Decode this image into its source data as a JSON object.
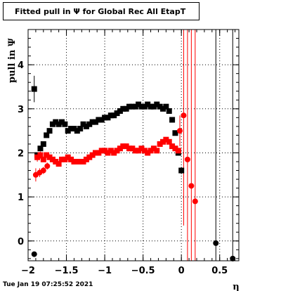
{
  "title": "Fitted pull in  Ψ  for Global Rec All EtapT",
  "timestamp": "Tue Jan 19 07:25:52 2021",
  "chart_data": {
    "type": "scatter",
    "title": "Fitted pull in  Ψ  for Global Rec All EtapT",
    "xlabel": "η",
    "ylabel": "pull in  Ψ",
    "xlim": [
      -2.0,
      0.75
    ],
    "ylim": [
      -0.45,
      4.8
    ],
    "grid": true,
    "xticks": [
      -2,
      -1.5,
      -1,
      -0.5,
      0,
      0.5
    ],
    "xtick_labels": [
      "−2",
      "−1.5",
      "−1",
      "−0.5",
      "0",
      "0.5"
    ],
    "yticks": [
      0,
      1,
      2,
      3,
      4
    ],
    "ytick_labels": [
      "0",
      "1",
      "2",
      "3",
      "4"
    ],
    "series": [
      {
        "color": "#000000",
        "marker": "square",
        "x": [
          -1.92,
          -1.88,
          -1.84,
          -1.8,
          -1.76,
          -1.72,
          -1.68,
          -1.64,
          -1.6,
          -1.56,
          -1.52,
          -1.48,
          -1.44,
          -1.4,
          -1.36,
          -1.32,
          -1.28,
          -1.24,
          -1.2,
          -1.16,
          -1.12,
          -1.08,
          -1.04,
          -1.0,
          -0.96,
          -0.92,
          -0.88,
          -0.84,
          -0.8,
          -0.76,
          -0.72,
          -0.68,
          -0.64,
          -0.6,
          -0.56,
          -0.52,
          -0.48,
          -0.44,
          -0.4,
          -0.36,
          -0.32,
          -0.28,
          -0.24,
          -0.2,
          -0.16,
          -0.12,
          -0.08,
          -0.04,
          0.0
        ],
        "y": [
          3.45,
          1.95,
          2.1,
          2.2,
          2.4,
          2.5,
          2.65,
          2.7,
          2.65,
          2.7,
          2.65,
          2.5,
          2.55,
          2.55,
          2.5,
          2.55,
          2.65,
          2.6,
          2.65,
          2.7,
          2.7,
          2.75,
          2.75,
          2.8,
          2.8,
          2.85,
          2.85,
          2.9,
          2.95,
          3.0,
          3.0,
          3.05,
          3.05,
          3.05,
          3.1,
          3.05,
          3.05,
          3.1,
          3.05,
          3.05,
          3.1,
          3.05,
          3.0,
          3.05,
          2.95,
          2.75,
          2.45,
          2.0,
          1.6
        ],
        "err": [
          0.3,
          0.05,
          0.05,
          0.05,
          0.05,
          0.05,
          0.05,
          0.05,
          0.05,
          0.05,
          0.05,
          0.05,
          0.05,
          0.05,
          0.05,
          0.05,
          0.05,
          0.05,
          0.05,
          0.05,
          0.05,
          0.05,
          0.05,
          0.05,
          0.05,
          0.05,
          0.05,
          0.05,
          0.05,
          0.05,
          0.05,
          0.05,
          0.05,
          0.05,
          0.05,
          0.05,
          0.05,
          0.05,
          0.05,
          0.05,
          0.05,
          0.05,
          0.05,
          0.05,
          0.05,
          0.05,
          0.05,
          0.05,
          0.08
        ]
      },
      {
        "color": "#ff0000",
        "marker": "square",
        "x": [
          -1.88,
          -1.84,
          -1.8,
          -1.76,
          -1.72,
          -1.68,
          -1.64,
          -1.6,
          -1.56,
          -1.52,
          -1.48,
          -1.44,
          -1.4,
          -1.36,
          -1.32,
          -1.28,
          -1.24,
          -1.2,
          -1.16,
          -1.12,
          -1.08,
          -1.04,
          -1.0,
          -0.96,
          -0.92,
          -0.88,
          -0.84,
          -0.8,
          -0.76,
          -0.72,
          -0.68,
          -0.64,
          -0.6,
          -0.56,
          -0.52,
          -0.48,
          -0.44,
          -0.4,
          -0.36,
          -0.32,
          -0.28,
          -0.24,
          -0.2,
          -0.16,
          -0.12,
          -0.08,
          -0.04
        ],
        "y": [
          1.9,
          1.95,
          1.85,
          1.95,
          1.9,
          1.85,
          1.8,
          1.75,
          1.85,
          1.85,
          1.9,
          1.85,
          1.8,
          1.8,
          1.8,
          1.8,
          1.85,
          1.9,
          1.95,
          2.0,
          2.0,
          2.05,
          2.05,
          2.0,
          2.05,
          2.0,
          2.05,
          2.1,
          2.15,
          2.15,
          2.1,
          2.1,
          2.05,
          2.05,
          2.1,
          2.05,
          2.0,
          2.05,
          2.1,
          2.05,
          2.2,
          2.25,
          2.3,
          2.25,
          2.15,
          2.1,
          2.05
        ],
        "err": [
          0.1,
          0.08,
          0.05,
          0.05,
          0.05,
          0.05,
          0.05,
          0.05,
          0.05,
          0.05,
          0.05,
          0.05,
          0.05,
          0.05,
          0.05,
          0.05,
          0.05,
          0.05,
          0.05,
          0.05,
          0.05,
          0.05,
          0.05,
          0.05,
          0.05,
          0.05,
          0.05,
          0.05,
          0.05,
          0.05,
          0.05,
          0.05,
          0.05,
          0.05,
          0.05,
          0.05,
          0.05,
          0.05,
          0.05,
          0.05,
          0.05,
          0.05,
          0.05,
          0.05,
          0.05,
          0.05,
          0.05
        ]
      },
      {
        "color": "#ff0000",
        "marker": "circle",
        "x": [
          -1.9,
          -1.85,
          -1.8,
          -1.75,
          -0.02,
          0.03,
          0.08,
          0.13,
          0.18
        ],
        "y": [
          1.5,
          1.55,
          1.6,
          1.7,
          2.5,
          2.85,
          1.85,
          1.25,
          0.9
        ],
        "err": [
          0.15,
          0.1,
          0.08,
          0.08,
          0.35,
          2.5,
          3.5,
          3.8,
          4.0
        ]
      },
      {
        "color": "#000000",
        "marker": "circle",
        "x": [
          -1.92,
          0.45,
          0.67
        ],
        "y": [
          -0.3,
          -0.05,
          -0.4
        ],
        "err": [
          0.05,
          6.0,
          6.0
        ]
      }
    ]
  }
}
